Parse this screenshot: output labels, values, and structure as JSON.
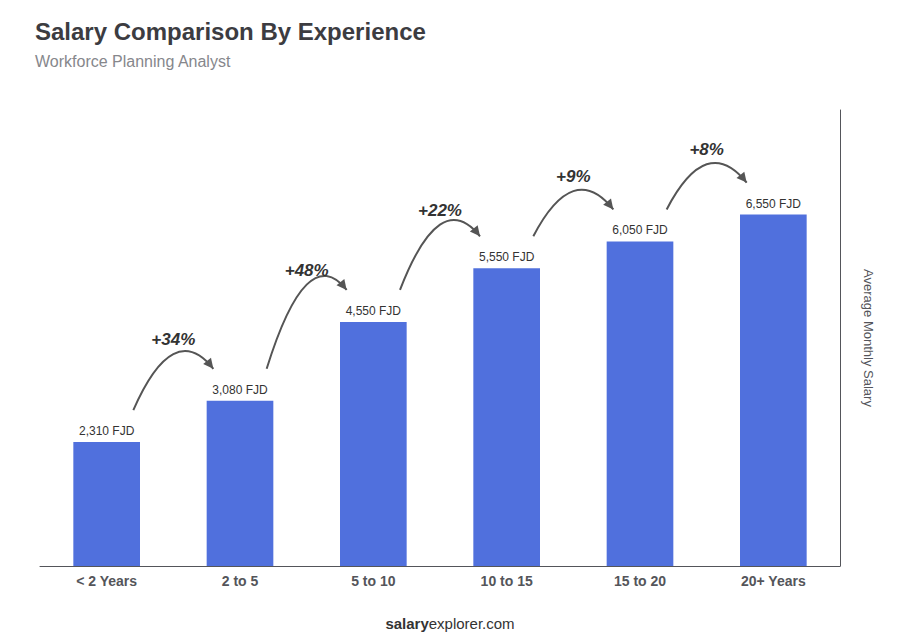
{
  "chart_data": {
    "type": "bar",
    "title": "Salary Comparison By Experience",
    "subtitle": "Workforce Planning Analyst",
    "categories": [
      "< 2 Years",
      "2 to 5",
      "5 to 10",
      "10 to 15",
      "15 to 20",
      "20+ Years"
    ],
    "values": [
      2310,
      3080,
      4550,
      5550,
      6050,
      6550
    ],
    "value_labels": [
      "2,310 FJD",
      "3,080 FJD",
      "4,550 FJD",
      "5,550 FJD",
      "6,050 FJD",
      "6,550 FJD"
    ],
    "data_labels": true,
    "ylabel": "Average Monthly Salary",
    "ylim": [
      0,
      8500
    ],
    "tick_labels": "x",
    "grid": false,
    "annotations": [
      "+34%",
      "+48%",
      "+22%",
      "+9%",
      "+8%"
    ],
    "footer": [
      "salary",
      "explorer.com"
    ]
  }
}
